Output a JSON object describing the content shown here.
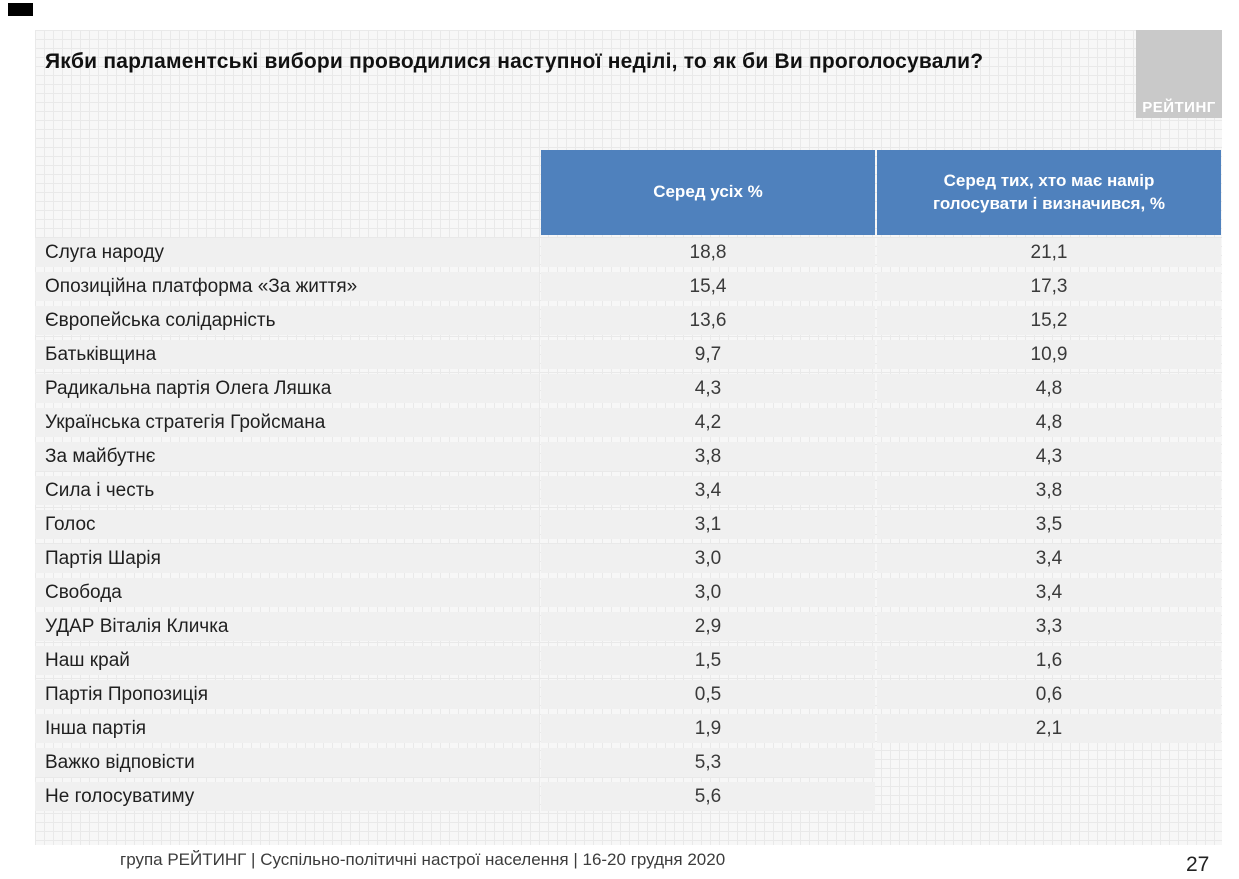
{
  "slide": {
    "title": "Якби парламентські вибори проводилися наступної неділі, то як би Ви проголосували?",
    "logo_text": "РЕЙТИНГ",
    "footer": "група РЕЙТИНГ | Суспільно-політичні настрої населення | 16-20 грудня 2020",
    "page_number": "27"
  },
  "colors": {
    "header_blue": "#4f81bd",
    "row_gray": "#f0f0f0",
    "logo_gray": "#c9c9c9"
  },
  "chart_data": {
    "type": "table",
    "title": "Якби парламентські вибори проводилися наступної неділі, то як би Ви проголосували?",
    "columns": [
      "",
      "Серед усіх %",
      "Серед тих, хто має намір голосувати і визначився, %"
    ],
    "rows": [
      {
        "party": "Слуга народу",
        "among_all": "18,8",
        "among_decided": "21,1"
      },
      {
        "party": "Опозиційна платформа «За життя»",
        "among_all": "15,4",
        "among_decided": "17,3"
      },
      {
        "party": "Європейська солідарність",
        "among_all": "13,6",
        "among_decided": "15,2"
      },
      {
        "party": "Батьківщина",
        "among_all": "9,7",
        "among_decided": "10,9"
      },
      {
        "party": "Радикальна партія Олега Ляшка",
        "among_all": "4,3",
        "among_decided": "4,8"
      },
      {
        "party": "Українська стратегія Гройсмана",
        "among_all": "4,2",
        "among_decided": "4,8"
      },
      {
        "party": "За майбутнє",
        "among_all": "3,8",
        "among_decided": "4,3"
      },
      {
        "party": "Сила і честь",
        "among_all": "3,4",
        "among_decided": "3,8"
      },
      {
        "party": "Голос",
        "among_all": "3,1",
        "among_decided": "3,5"
      },
      {
        "party": "Партія Шарія",
        "among_all": "3,0",
        "among_decided": "3,4"
      },
      {
        "party": "Свобода",
        "among_all": "3,0",
        "among_decided": "3,4"
      },
      {
        "party": "УДАР Віталія Кличка",
        "among_all": "2,9",
        "among_decided": "3,3"
      },
      {
        "party": "Наш край",
        "among_all": "1,5",
        "among_decided": "1,6"
      },
      {
        "party": "Партія Пропозиція",
        "among_all": "0,5",
        "among_decided": "0,6"
      },
      {
        "party": "Інша партія",
        "among_all": "1,9",
        "among_decided": "2,1"
      },
      {
        "party": "Важко відповісти",
        "among_all": "5,3",
        "among_decided": null
      },
      {
        "party": "Не голосуватиму",
        "among_all": "5,6",
        "among_decided": null
      }
    ]
  }
}
